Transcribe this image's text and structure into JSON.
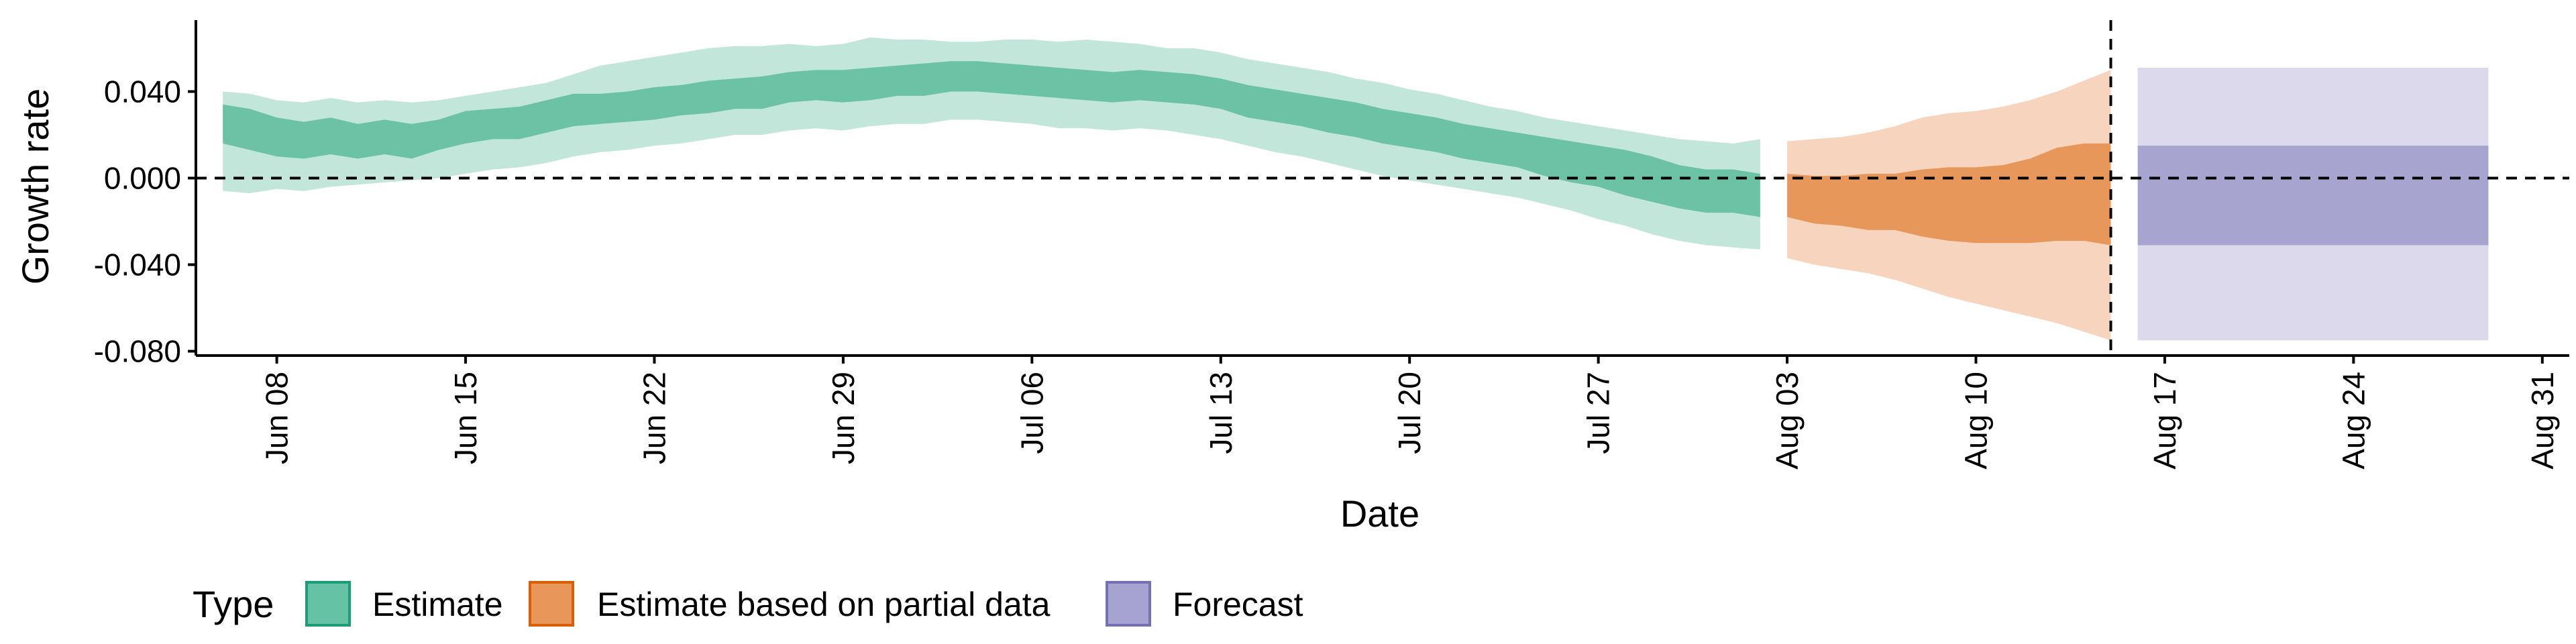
{
  "chart_data": {
    "type": "area",
    "xlabel": "Date",
    "ylabel": "Growth rate",
    "xlim": [
      "2020-06-05",
      "2020-09-01"
    ],
    "ylim": [
      -0.082,
      0.073
    ],
    "y_ticks": [
      -0.08,
      -0.04,
      0.0,
      0.04
    ],
    "y_tick_labels": [
      "-0.080",
      "-0.040",
      "0.000",
      "0.040"
    ],
    "x_ticks": [
      "2020-06-08",
      "2020-06-15",
      "2020-06-22",
      "2020-06-29",
      "2020-07-06",
      "2020-07-13",
      "2020-07-20",
      "2020-07-27",
      "2020-08-03",
      "2020-08-10",
      "2020-08-17",
      "2020-08-24",
      "2020-08-31"
    ],
    "x_tick_labels": [
      "Jun 08",
      "Jun 15",
      "Jun 22",
      "Jun 29",
      "Jul 06",
      "Jul 13",
      "Jul 20",
      "Jul 27",
      "Aug 03",
      "Aug 10",
      "Aug 17",
      "Aug 24",
      "Aug 31"
    ],
    "reference_lines": {
      "horizontal_y": 0.0,
      "vertical_x": "2020-08-15"
    },
    "legend": {
      "title": "Type",
      "position": "bottom",
      "entries": [
        {
          "label": "Estimate",
          "fill": "#66c2a5",
          "border": "#1b9e77"
        },
        {
          "label": "Estimate based on partial data",
          "fill": "#e8965a",
          "border": "#d95f02"
        },
        {
          "label": "Forecast",
          "fill": "#a7a3d0",
          "border": "#7570b3"
        }
      ]
    },
    "series": [
      {
        "name": "Estimate",
        "inner_color": "#6cc2a5",
        "outer_color": "#c3e6da",
        "dates": [
          "2020-06-06",
          "2020-06-07",
          "2020-06-08",
          "2020-06-09",
          "2020-06-10",
          "2020-06-11",
          "2020-06-12",
          "2020-06-13",
          "2020-06-14",
          "2020-06-15",
          "2020-06-16",
          "2020-06-17",
          "2020-06-18",
          "2020-06-19",
          "2020-06-20",
          "2020-06-21",
          "2020-06-22",
          "2020-06-23",
          "2020-06-24",
          "2020-06-25",
          "2020-06-26",
          "2020-06-27",
          "2020-06-28",
          "2020-06-29",
          "2020-06-30",
          "2020-07-01",
          "2020-07-02",
          "2020-07-03",
          "2020-07-04",
          "2020-07-05",
          "2020-07-06",
          "2020-07-07",
          "2020-07-08",
          "2020-07-09",
          "2020-07-10",
          "2020-07-11",
          "2020-07-12",
          "2020-07-13",
          "2020-07-14",
          "2020-07-15",
          "2020-07-16",
          "2020-07-17",
          "2020-07-18",
          "2020-07-19",
          "2020-07-20",
          "2020-07-21",
          "2020-07-22",
          "2020-07-23",
          "2020-07-24",
          "2020-07-25",
          "2020-07-26",
          "2020-07-27",
          "2020-07-28",
          "2020-07-29",
          "2020-07-30",
          "2020-07-31",
          "2020-08-01",
          "2020-08-02"
        ],
        "outer_upper": [
          0.04,
          0.039,
          0.036,
          0.035,
          0.037,
          0.035,
          0.036,
          0.035,
          0.036,
          0.038,
          0.04,
          0.042,
          0.044,
          0.048,
          0.052,
          0.054,
          0.056,
          0.058,
          0.06,
          0.061,
          0.061,
          0.062,
          0.061,
          0.062,
          0.065,
          0.064,
          0.064,
          0.063,
          0.063,
          0.064,
          0.064,
          0.063,
          0.064,
          0.063,
          0.062,
          0.06,
          0.06,
          0.058,
          0.055,
          0.053,
          0.051,
          0.049,
          0.046,
          0.044,
          0.041,
          0.039,
          0.036,
          0.033,
          0.031,
          0.028,
          0.026,
          0.024,
          0.022,
          0.02,
          0.018,
          0.017,
          0.016,
          0.018
        ],
        "inner_upper": [
          0.034,
          0.032,
          0.028,
          0.026,
          0.028,
          0.025,
          0.027,
          0.025,
          0.027,
          0.031,
          0.032,
          0.033,
          0.036,
          0.039,
          0.039,
          0.04,
          0.042,
          0.043,
          0.045,
          0.046,
          0.047,
          0.049,
          0.05,
          0.05,
          0.051,
          0.052,
          0.053,
          0.054,
          0.054,
          0.053,
          0.052,
          0.051,
          0.05,
          0.049,
          0.05,
          0.049,
          0.048,
          0.046,
          0.043,
          0.041,
          0.039,
          0.037,
          0.035,
          0.032,
          0.03,
          0.028,
          0.025,
          0.023,
          0.021,
          0.019,
          0.017,
          0.015,
          0.013,
          0.01,
          0.006,
          0.004,
          0.004,
          0.002
        ],
        "inner_lower": [
          0.016,
          0.013,
          0.01,
          0.009,
          0.011,
          0.009,
          0.011,
          0.009,
          0.013,
          0.016,
          0.018,
          0.018,
          0.021,
          0.024,
          0.025,
          0.026,
          0.027,
          0.029,
          0.03,
          0.032,
          0.032,
          0.035,
          0.036,
          0.035,
          0.036,
          0.038,
          0.038,
          0.04,
          0.04,
          0.039,
          0.038,
          0.037,
          0.036,
          0.035,
          0.036,
          0.035,
          0.034,
          0.032,
          0.028,
          0.026,
          0.024,
          0.021,
          0.019,
          0.016,
          0.014,
          0.012,
          0.009,
          0.007,
          0.005,
          0.001,
          -0.002,
          -0.004,
          -0.008,
          -0.011,
          -0.014,
          -0.016,
          -0.016,
          -0.018
        ],
        "outer_lower": [
          -0.006,
          -0.007,
          -0.005,
          -0.006,
          -0.004,
          -0.003,
          -0.002,
          -0.001,
          0.0,
          0.002,
          0.004,
          0.005,
          0.007,
          0.01,
          0.012,
          0.013,
          0.015,
          0.016,
          0.018,
          0.02,
          0.02,
          0.022,
          0.023,
          0.022,
          0.024,
          0.025,
          0.025,
          0.027,
          0.027,
          0.026,
          0.025,
          0.023,
          0.023,
          0.022,
          0.023,
          0.022,
          0.02,
          0.018,
          0.015,
          0.012,
          0.01,
          0.007,
          0.004,
          0.001,
          -0.001,
          -0.003,
          -0.005,
          -0.007,
          -0.009,
          -0.012,
          -0.015,
          -0.019,
          -0.022,
          -0.026,
          -0.029,
          -0.031,
          -0.032,
          -0.033
        ]
      },
      {
        "name": "Estimate based on partial data",
        "inner_color": "#e8975a",
        "outer_color": "#f7d4bd",
        "dates": [
          "2020-08-03",
          "2020-08-04",
          "2020-08-05",
          "2020-08-06",
          "2020-08-07",
          "2020-08-08",
          "2020-08-09",
          "2020-08-10",
          "2020-08-11",
          "2020-08-12",
          "2020-08-13",
          "2020-08-14",
          "2020-08-15"
        ],
        "outer_upper": [
          0.017,
          0.018,
          0.019,
          0.021,
          0.024,
          0.028,
          0.03,
          0.031,
          0.033,
          0.036,
          0.04,
          0.045,
          0.05
        ],
        "inner_upper": [
          0.002,
          0.001,
          0.001,
          0.002,
          0.002,
          0.004,
          0.005,
          0.005,
          0.006,
          0.009,
          0.014,
          0.016,
          0.016
        ],
        "inner_lower": [
          -0.018,
          -0.021,
          -0.022,
          -0.024,
          -0.024,
          -0.027,
          -0.029,
          -0.03,
          -0.03,
          -0.03,
          -0.029,
          -0.029,
          -0.031
        ],
        "outer_lower": [
          -0.037,
          -0.04,
          -0.042,
          -0.044,
          -0.047,
          -0.051,
          -0.055,
          -0.058,
          -0.061,
          -0.064,
          -0.067,
          -0.071,
          -0.075
        ]
      },
      {
        "name": "Forecast",
        "inner_color": "#a8a4d0",
        "outer_color": "#dbd9eb",
        "dates": [
          "2020-08-16",
          "2020-08-29"
        ],
        "outer_upper": [
          0.051,
          0.051
        ],
        "inner_upper": [
          0.015,
          0.015
        ],
        "inner_lower": [
          -0.031,
          -0.031
        ],
        "outer_lower": [
          -0.075,
          -0.075
        ]
      }
    ]
  }
}
